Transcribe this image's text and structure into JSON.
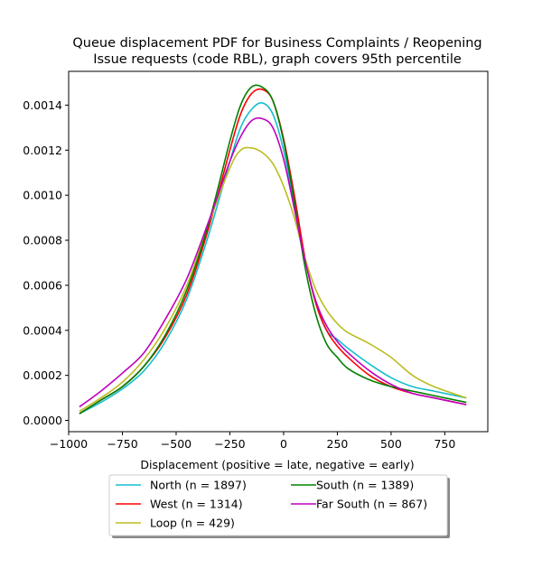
{
  "chart_data": {
    "type": "line",
    "title_lines": [
      "Queue displacement PDF for Business Complaints / Reopening",
      "Issue  requests (code RBL), graph covers 95th percentile"
    ],
    "xlabel": "Displacement (positive = late, negative = early)",
    "ylabel": "",
    "xlim": [
      -1000,
      950
    ],
    "ylim": [
      -5e-05,
      0.00155
    ],
    "x_ticks": [
      -1000,
      -750,
      -500,
      -250,
      0,
      250,
      500,
      750
    ],
    "x_tick_labels": [
      "−1000",
      "−750",
      "−500",
      "−250",
      "0",
      "250",
      "500",
      "750"
    ],
    "y_ticks": [
      0,
      0.0002,
      0.0004,
      0.0006,
      0.0008,
      0.001,
      0.0012,
      0.0014
    ],
    "y_tick_labels": [
      "0.0000",
      "0.0002",
      "0.0004",
      "0.0006",
      "0.0008",
      "0.0010",
      "0.0012",
      "0.0014"
    ],
    "grid": false,
    "legend_position": "below",
    "x": [
      -950,
      -850,
      -750,
      -650,
      -550,
      -450,
      -350,
      -250,
      -200,
      -150,
      -100,
      -50,
      0,
      50,
      100,
      150,
      200,
      250,
      300,
      400,
      500,
      600,
      700,
      850
    ],
    "series": [
      {
        "name": "North (n = 1897)",
        "color": "#17becf",
        "values": [
          3e-05,
          8e-05,
          0.00014,
          0.00022,
          0.00035,
          0.00054,
          0.00082,
          0.00115,
          0.0013,
          0.00138,
          0.00141,
          0.00136,
          0.0012,
          0.00096,
          0.00072,
          0.00052,
          0.0004,
          0.00036,
          0.00032,
          0.00025,
          0.00019,
          0.00015,
          0.00013,
          0.0001
        ]
      },
      {
        "name": "West (n = 1314)",
        "color": "#ff0000",
        "values": [
          3e-05,
          9e-05,
          0.00015,
          0.00024,
          0.00037,
          0.00056,
          0.00085,
          0.0012,
          0.00136,
          0.00145,
          0.00147,
          0.00142,
          0.00125,
          0.001,
          0.00072,
          0.00052,
          0.0004,
          0.00033,
          0.00028,
          0.0002,
          0.00015,
          0.00012,
          0.0001,
          7e-05
        ]
      },
      {
        "name": "Loop (n = 429)",
        "color": "#bcbd22",
        "values": [
          4e-05,
          0.0001,
          0.00017,
          0.00027,
          0.00041,
          0.0006,
          0.00087,
          0.00112,
          0.0012,
          0.00121,
          0.00119,
          0.00114,
          0.00104,
          0.0009,
          0.00072,
          0.00058,
          0.00049,
          0.00043,
          0.00039,
          0.00034,
          0.00028,
          0.0002,
          0.00015,
          0.0001
        ]
      },
      {
        "name": "South (n = 1389)",
        "color": "#008000",
        "values": [
          3e-05,
          9e-05,
          0.00015,
          0.00024,
          0.00038,
          0.00058,
          0.00087,
          0.00124,
          0.0014,
          0.00148,
          0.00148,
          0.00142,
          0.00124,
          0.00097,
          0.00068,
          0.00047,
          0.00034,
          0.00028,
          0.00023,
          0.00018,
          0.00015,
          0.00013,
          0.00011,
          8e-05
        ]
      },
      {
        "name": "Far South (n = 867)",
        "color": "#bf00bf",
        "values": [
          6e-05,
          0.00013,
          0.00021,
          0.0003,
          0.00045,
          0.00063,
          0.00088,
          0.00115,
          0.00126,
          0.00133,
          0.00134,
          0.0013,
          0.00116,
          0.00094,
          0.00071,
          0.00053,
          0.00042,
          0.00035,
          0.0003,
          0.00022,
          0.00016,
          0.00012,
          0.0001,
          7e-05
        ]
      }
    ]
  }
}
